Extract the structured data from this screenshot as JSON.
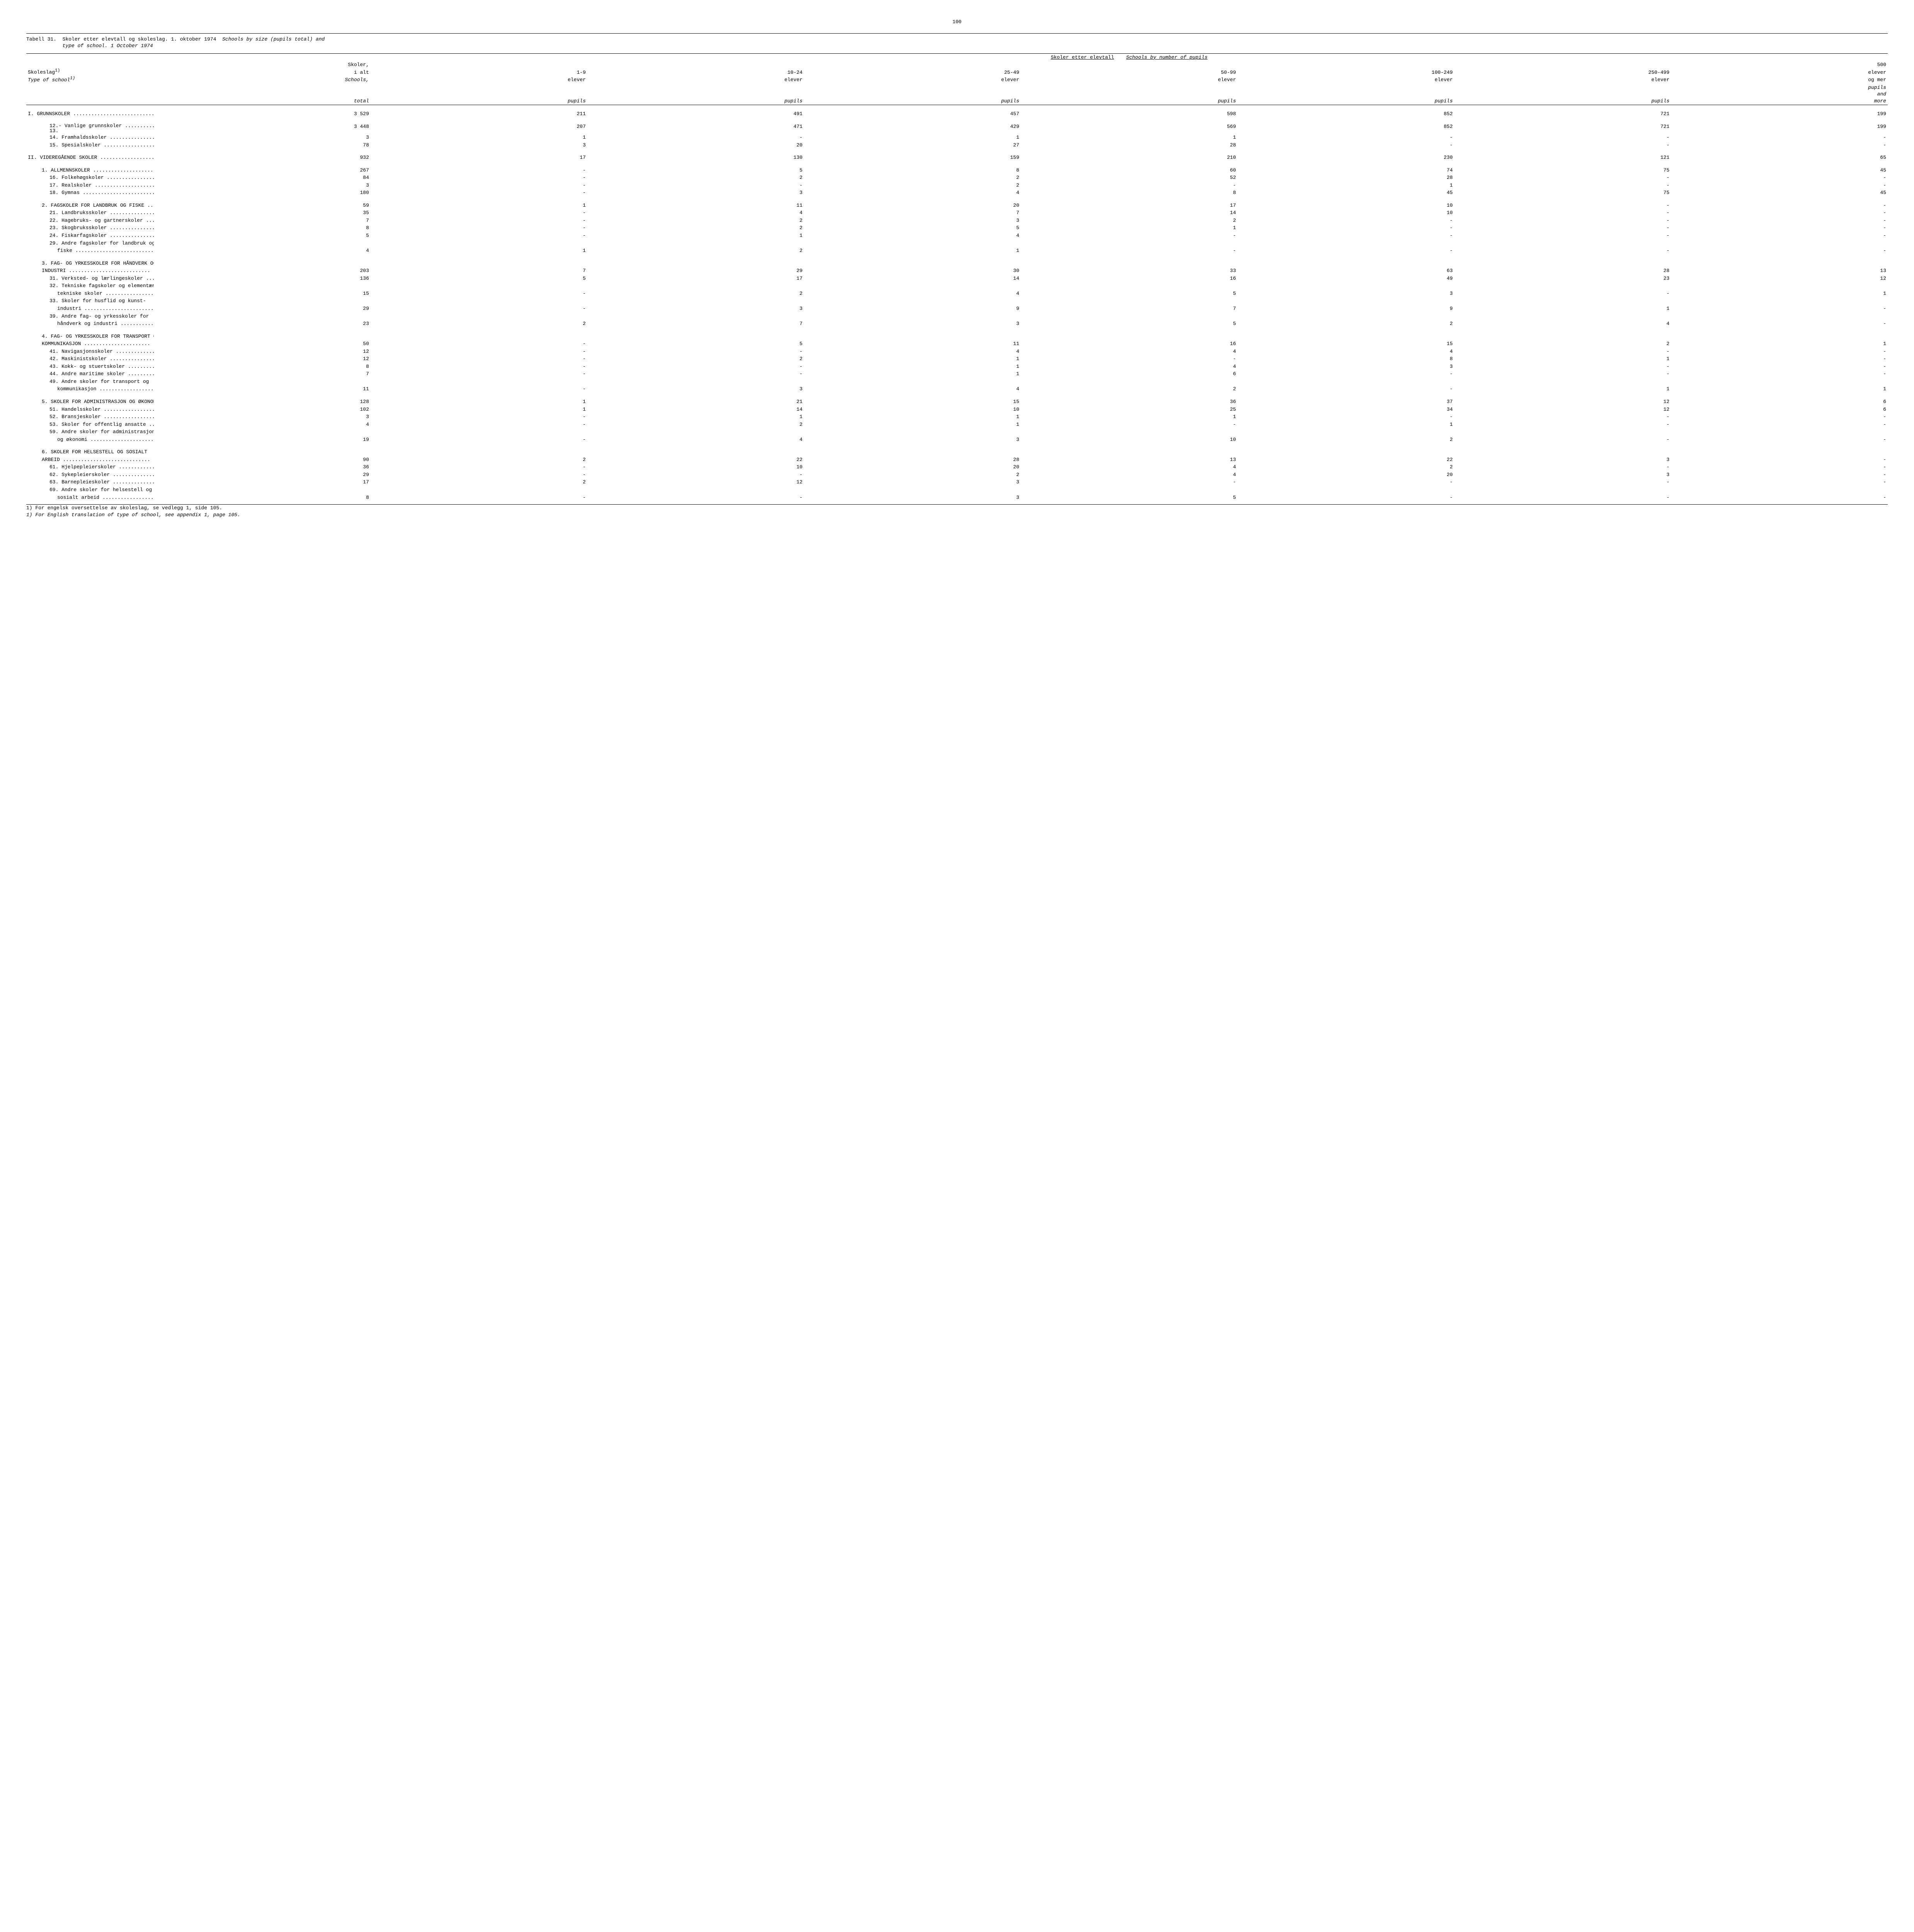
{
  "pageNumber": "100",
  "tableLabel": "Tabell 31.",
  "titleNo": "Skoler etter elevtall og skoleslag.  1. oktober 1974",
  "titleEn": "Schools by size (pupils total) and",
  "titleEn2": "type of school.  1 October 1974",
  "rowHeadNo": "Skoleslag",
  "rowHeadEn": "Type of school",
  "sup1": "1)",
  "colGroupNo": "Skoler etter elevtall",
  "colGroupEn": "Schools by number of pupils",
  "col0a": "Skoler,",
  "col0b": "i alt",
  "col0c": "Schools,",
  "col0d": "total",
  "col1a": "1-9",
  "col1b": "elever",
  "col1c": "pupils",
  "col2a": "10-24",
  "col2b": "elever",
  "col2c": "pupils",
  "col3a": "25-49",
  "col3b": "elever",
  "col3c": "pupils",
  "col4a": "50-99",
  "col4b": "elever",
  "col4c": "pupils",
  "col5a": "100-249",
  "col5b": "elever",
  "col5c": "pupils",
  "col6a": "250-499",
  "col6b": "elever",
  "col6c": "pupils",
  "col7a": "500",
  "col7b": "elever",
  "col7c": "og mer",
  "col7d": "pupils",
  "col7e": "and",
  "col7f": "more",
  "rows": [
    {
      "cls": "section-row",
      "label": "I. GRUNNSKOLER ...........................",
      "v": [
        "3 529",
        "211",
        "491",
        "457",
        "598",
        "852",
        "721",
        "199"
      ]
    },
    {
      "cls": "item-row section-row",
      "label": "12.- Vanlige grunnskoler ............",
      "v": [
        "3 448",
        "207",
        "471",
        "429",
        "569",
        "852",
        "721",
        "199"
      ],
      "pre": "13."
    },
    {
      "cls": "item-row",
      "label": "14. Framhaldsskoler ................",
      "v": [
        "3",
        "1",
        "-",
        "1",
        "1",
        "-",
        "-",
        "-"
      ]
    },
    {
      "cls": "item-row",
      "label": "15. Spesialskoler ..................",
      "v": [
        "78",
        "3",
        "20",
        "27",
        "28",
        "-",
        "-",
        "-"
      ]
    },
    {
      "cls": "section-row",
      "label": "II. VIDEREGÅENDE SKOLER ...................",
      "v": [
        "932",
        "17",
        "130",
        "159",
        "210",
        "230",
        "121",
        "65"
      ]
    },
    {
      "cls": "sub-row section-row",
      "label": "1. ALLMENNSKOLER ......................",
      "v": [
        "267",
        "-",
        "5",
        "8",
        "60",
        "74",
        "75",
        "45"
      ]
    },
    {
      "cls": "item-row",
      "label": "16. Folkehøgskoler .................",
      "v": [
        "84",
        "-",
        "2",
        "2",
        "52",
        "28",
        "-",
        "-"
      ]
    },
    {
      "cls": "item-row",
      "label": "17. Realskoler .....................",
      "v": [
        "3",
        "-",
        "-",
        "2",
        "-",
        "1",
        "-",
        "-"
      ]
    },
    {
      "cls": "item-row",
      "label": "18. Gymnas .........................",
      "v": [
        "180",
        "-",
        "3",
        "4",
        "8",
        "45",
        "75",
        "45"
      ]
    },
    {
      "cls": "sub-row section-row",
      "label": "2. FAGSKOLER FOR LANDBRUK OG FISKE ....",
      "v": [
        "59",
        "1",
        "11",
        "20",
        "17",
        "10",
        "-",
        "-"
      ]
    },
    {
      "cls": "item-row",
      "label": "21. Landbruksskoler ................",
      "v": [
        "35",
        "-",
        "4",
        "7",
        "14",
        "10",
        "-",
        "-"
      ]
    },
    {
      "cls": "item-row",
      "label": "22. Hagebruks- og gartnerskoler ....",
      "v": [
        "7",
        "-",
        "2",
        "3",
        "2",
        "-",
        "-",
        "-"
      ]
    },
    {
      "cls": "item-row",
      "label": "23. Skogbruksskoler ................",
      "v": [
        "8",
        "-",
        "2",
        "5",
        "1",
        "-",
        "-",
        "-"
      ]
    },
    {
      "cls": "item-row",
      "label": "24. Fiskarfagskoler ................",
      "v": [
        "5",
        "-",
        "1",
        "4",
        "-",
        "-",
        "-",
        "-"
      ]
    },
    {
      "cls": "item-row",
      "label": "29. Andre fagskoler for landbruk og",
      "v": [
        "",
        "",
        "",
        "",
        "",
        "",
        "",
        ""
      ]
    },
    {
      "cls": "item-cont",
      "label": "fiske ..........................",
      "v": [
        "4",
        "1",
        "2",
        "1",
        "-",
        "-",
        "-",
        "-"
      ]
    },
    {
      "cls": "sub-row section-row",
      "label": "3. FAG- OG YRKESSKOLER FOR HÅNDVERK OG",
      "v": [
        "",
        "",
        "",
        "",
        "",
        "",
        "",
        ""
      ]
    },
    {
      "cls": "sub-row",
      "label": "   INDUSTRI ...........................",
      "v": [
        "203",
        "7",
        "29",
        "30",
        "33",
        "63",
        "28",
        "13"
      ]
    },
    {
      "cls": "item-row",
      "label": "31. Verksted- og lærlingeskoler ....",
      "v": [
        "136",
        "5",
        "17",
        "14",
        "16",
        "49",
        "23",
        "12"
      ]
    },
    {
      "cls": "item-row",
      "label": "32. Tekniske fagskoler og elementær-",
      "v": [
        "",
        "",
        "",
        "",
        "",
        "",
        "",
        ""
      ]
    },
    {
      "cls": "item-cont",
      "label": "tekniske skoler ................",
      "v": [
        "15",
        "-",
        "2",
        "4",
        "5",
        "3",
        "-",
        "1"
      ]
    },
    {
      "cls": "item-row",
      "label": "33. Skoler for husflid og kunst-",
      "v": [
        "",
        "",
        "",
        "",
        "",
        "",
        "",
        ""
      ]
    },
    {
      "cls": "item-cont",
      "label": "industri .......................",
      "v": [
        "29",
        "-",
        "3",
        "9",
        "7",
        "9",
        "1",
        "-"
      ]
    },
    {
      "cls": "item-row",
      "label": "39. Andre fag- og yrkesskoler for",
      "v": [
        "",
        "",
        "",
        "",
        "",
        "",
        "",
        ""
      ]
    },
    {
      "cls": "item-cont",
      "label": "håndverk og industri ...........",
      "v": [
        "23",
        "2",
        "7",
        "3",
        "5",
        "2",
        "4",
        "-"
      ]
    },
    {
      "cls": "sub-row section-row",
      "label": "4. FAG- OG YRKESSKOLER FOR TRANSPORT OG",
      "v": [
        "",
        "",
        "",
        "",
        "",
        "",
        "",
        ""
      ]
    },
    {
      "cls": "sub-row",
      "label": "   KOMMUNIKASJON ......................",
      "v": [
        "50",
        "-",
        "5",
        "11",
        "16",
        "15",
        "2",
        "1"
      ]
    },
    {
      "cls": "item-row",
      "label": "41. Navigasjonsskoler ..............",
      "v": [
        "12",
        "-",
        "-",
        "4",
        "4",
        "4",
        "-",
        "-"
      ]
    },
    {
      "cls": "item-row",
      "label": "42. Maskinistskoler ................",
      "v": [
        "12",
        "-",
        "2",
        "1",
        "-",
        "8",
        "1",
        "-"
      ]
    },
    {
      "cls": "item-row",
      "label": "43. Kokk- og stuertskoler ..........",
      "v": [
        "8",
        "-",
        "-",
        "1",
        "4",
        "3",
        "-",
        "-"
      ]
    },
    {
      "cls": "item-row",
      "label": "44. Andre maritime skoler ..........",
      "v": [
        "7",
        "-",
        "-",
        "1",
        "6",
        "-",
        "-",
        "-"
      ]
    },
    {
      "cls": "item-row",
      "label": "49. Andre skoler for transport og",
      "v": [
        "",
        "",
        "",
        "",
        "",
        "",
        "",
        ""
      ]
    },
    {
      "cls": "item-cont",
      "label": "kommunikasjon ..................",
      "v": [
        "11",
        "-",
        "3",
        "4",
        "2",
        "-",
        "1",
        "1"
      ]
    },
    {
      "cls": "sub-row section-row",
      "label": "5. SKOLER FOR ADMINISTRASJON OG ØKONOMI",
      "v": [
        "128",
        "1",
        "21",
        "15",
        "36",
        "37",
        "12",
        "6"
      ]
    },
    {
      "cls": "item-row",
      "label": "51. Handelsskoler ..................",
      "v": [
        "102",
        "1",
        "14",
        "10",
        "25",
        "34",
        "12",
        "6"
      ]
    },
    {
      "cls": "item-row",
      "label": "52. Bransjeskoler ..................",
      "v": [
        "3",
        "-",
        "1",
        "1",
        "1",
        "-",
        "-",
        "-"
      ]
    },
    {
      "cls": "item-row",
      "label": "53. Skoler for offentlig ansatte ...",
      "v": [
        "4",
        "-",
        "2",
        "1",
        "-",
        "1",
        "-",
        "-"
      ]
    },
    {
      "cls": "item-row",
      "label": "59. Andre skoler for administrasjon",
      "v": [
        "",
        "",
        "",
        "",
        "",
        "",
        "",
        ""
      ]
    },
    {
      "cls": "item-cont",
      "label": "og økonomi .....................",
      "v": [
        "19",
        "-",
        "4",
        "3",
        "10",
        "2",
        "-",
        "-"
      ]
    },
    {
      "cls": "sub-row section-row",
      "label": "6. SKOLER FOR HELSESTELL OG SOSIALT",
      "v": [
        "",
        "",
        "",
        "",
        "",
        "",
        "",
        ""
      ]
    },
    {
      "cls": "sub-row",
      "label": "   ARBEID .............................",
      "v": [
        "90",
        "2",
        "22",
        "28",
        "13",
        "22",
        "3",
        "-"
      ]
    },
    {
      "cls": "item-row",
      "label": "61. Hjelpepleierskoler  ............",
      "v": [
        "36",
        "-",
        "10",
        "20",
        "4",
        "2",
        "-",
        "-"
      ]
    },
    {
      "cls": "item-row",
      "label": "62. Sykepleierskoler ...............",
      "v": [
        "29",
        "-",
        "-",
        "2",
        "4",
        "20",
        "3",
        "-"
      ]
    },
    {
      "cls": "item-row",
      "label": "63. Barnepleieskoler ...............",
      "v": [
        "17",
        "2",
        "12",
        "3",
        "-",
        "-",
        "-",
        "-"
      ]
    },
    {
      "cls": "item-row",
      "label": "69. Andre skoler for helsestell og",
      "v": [
        "",
        "",
        "",
        "",
        "",
        "",
        "",
        ""
      ]
    },
    {
      "cls": "item-cont",
      "label": "sosialt arbeid .................",
      "v": [
        "8",
        "-",
        "-",
        "3",
        "5",
        "-",
        "-",
        "-"
      ]
    }
  ],
  "footnote1": "1) For engelsk oversettelse av skoleslag, se vedlegg 1, side 105.",
  "footnote2": "1) For English translation of type of school, see appendix 1, page 105."
}
